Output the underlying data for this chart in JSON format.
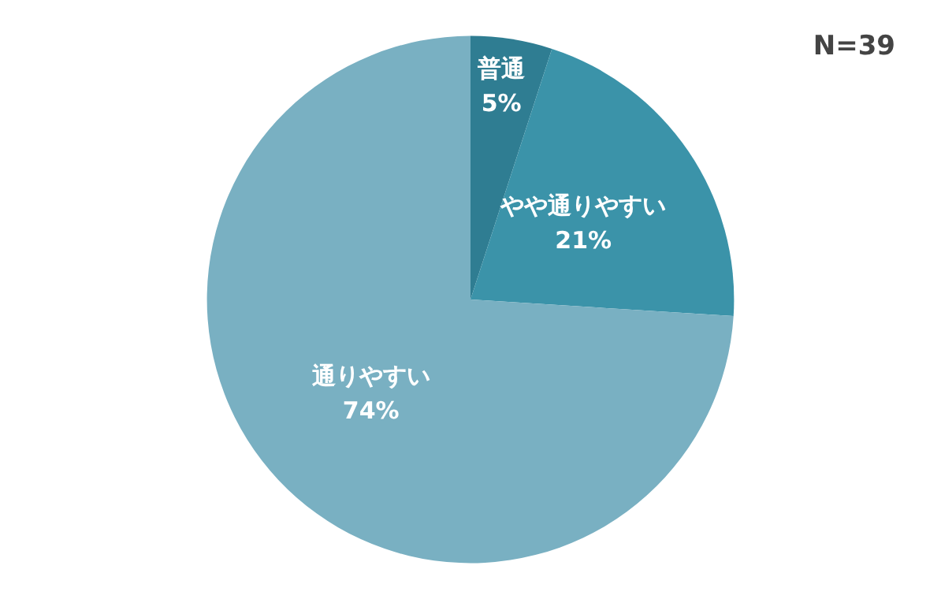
{
  "chart_data": {
    "type": "pie",
    "categories": [
      "普通",
      "やや通りやすい",
      "通りやすい"
    ],
    "values": [
      5,
      21,
      74
    ],
    "value_labels": [
      "5%",
      "21%",
      "74%"
    ],
    "colors": [
      "#2f7d92",
      "#3b93a9",
      "#79b0c2"
    ],
    "annotations": [
      "N=39"
    ],
    "legend": false
  }
}
